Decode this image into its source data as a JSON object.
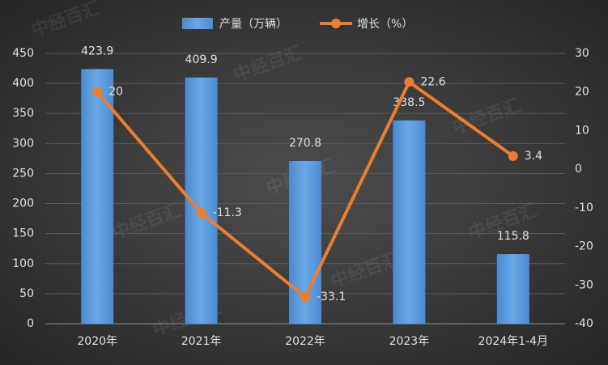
{
  "chart_data": {
    "type": "combo",
    "watermark": "中经百汇",
    "categories": [
      "2020年",
      "2021年",
      "2022年",
      "2023年",
      "2024年1-4月"
    ],
    "series": [
      {
        "name": "产量（万辆）",
        "type": "bar",
        "color": "#5b9bd5",
        "values": [
          423.9,
          409.9,
          270.8,
          338.5,
          115.8
        ]
      },
      {
        "name": "增长（%）",
        "type": "line",
        "axis": "y2",
        "color": "#ed7d31",
        "values": [
          20,
          -11.3,
          -33.1,
          22.6,
          3.4
        ]
      }
    ],
    "ylim": [
      0,
      450
    ],
    "yticks": [
      0,
      50,
      100,
      150,
      200,
      250,
      300,
      350,
      400,
      450
    ],
    "y2lim": [
      -40,
      30
    ],
    "y2ticks": [
      -40,
      -30,
      -20,
      -10,
      0,
      10,
      20,
      30
    ],
    "grid": true
  }
}
